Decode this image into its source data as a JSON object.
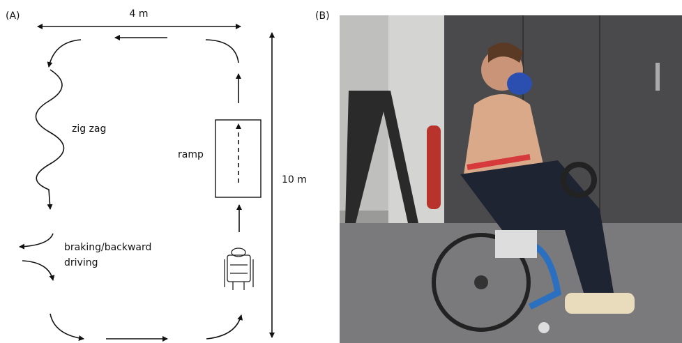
{
  "panel_a": {
    "label": "(A)",
    "width_label": "4 m",
    "length_label": "10 m",
    "zigzag": "zig zag",
    "ramp": "ramp",
    "braking": [
      "braking/backward",
      "driving"
    ]
  },
  "panel_b": {
    "label": "(B)"
  }
}
